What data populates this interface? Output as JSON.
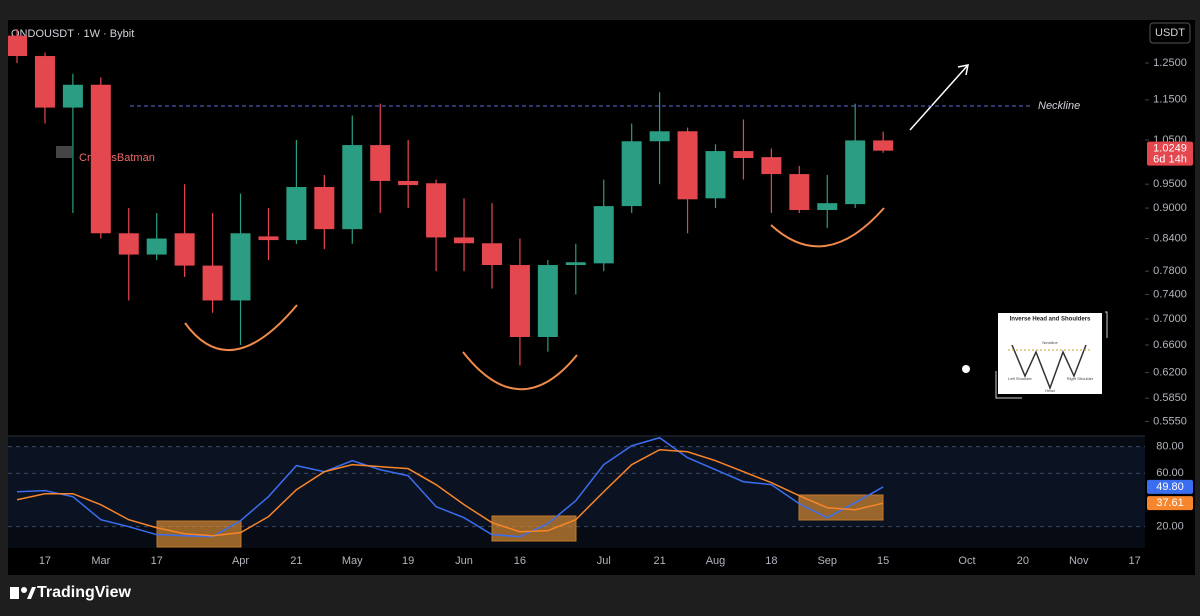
{
  "header": {
    "symbol": "ONDOUSDT · 1W · Bybit",
    "currency": "USDT",
    "author": "CryptosBatman"
  },
  "footer": {
    "logo": "TradingView"
  },
  "chart_data": [
    {
      "type": "candlestick",
      "log_scale": true,
      "up_color": "#2a9d83",
      "down_color": "#e5474f",
      "ylim": [
        0.537,
        1.378
      ],
      "yticks": [
        {
          "value": 1.25,
          "label": "1.2500"
        },
        {
          "value": 1.15,
          "label": "1.1500"
        },
        {
          "value": 1.05,
          "label": "1.0500"
        },
        {
          "value": 0.95,
          "label": "0.9500"
        },
        {
          "value": 0.9,
          "label": "0.9000"
        },
        {
          "value": 0.84,
          "label": "0.8400"
        },
        {
          "value": 0.78,
          "label": "0.7800"
        },
        {
          "value": 0.74,
          "label": "0.7400"
        },
        {
          "value": 0.7,
          "label": "0.7000"
        },
        {
          "value": 0.66,
          "label": "0.6600"
        },
        {
          "value": 0.62,
          "label": "0.6200"
        },
        {
          "value": 0.585,
          "label": "0.5850"
        },
        {
          "value": 0.555,
          "label": "0.5550"
        }
      ],
      "open": [
        1.33,
        1.27,
        1.13,
        1.19,
        0.85,
        0.81,
        0.85,
        0.79,
        0.73,
        0.844,
        0.837,
        0.944,
        0.858,
        1.038,
        0.957,
        0.952,
        0.842,
        0.831,
        0.791,
        0.672,
        0.791,
        0.794,
        0.904,
        1.047,
        1.071,
        0.92,
        1.024,
        1.01,
        0.972,
        0.896,
        0.908,
        1.049,
        null,
        null,
        null,
        null,
        null,
        null,
        null,
        null,
        null
      ],
      "high": [
        1.35,
        1.28,
        1.22,
        1.21,
        0.9,
        0.89,
        0.95,
        0.89,
        0.93,
        0.9,
        1.05,
        0.97,
        1.11,
        1.14,
        1.05,
        0.96,
        0.92,
        0.91,
        0.84,
        0.8,
        0.83,
        0.96,
        1.09,
        1.17,
        1.08,
        1.04,
        1.1,
        1.03,
        0.99,
        0.97,
        1.14,
        1.07,
        null,
        null,
        null,
        null,
        null,
        null,
        null,
        null,
        null
      ],
      "low": [
        1.25,
        1.09,
        0.89,
        0.84,
        0.73,
        0.8,
        0.77,
        0.71,
        0.66,
        0.8,
        0.83,
        0.82,
        0.83,
        0.89,
        0.9,
        0.78,
        0.78,
        0.75,
        0.63,
        0.65,
        0.74,
        0.78,
        0.89,
        0.95,
        0.85,
        0.9,
        0.96,
        0.89,
        0.89,
        0.86,
        0.9,
        1.02,
        null,
        null,
        null,
        null,
        null,
        null,
        null,
        null,
        null
      ],
      "close": [
        1.27,
        1.13,
        1.19,
        0.85,
        0.81,
        0.84,
        0.79,
        0.73,
        0.85,
        0.837,
        0.944,
        0.858,
        1.038,
        0.957,
        0.948,
        0.842,
        0.831,
        0.791,
        0.672,
        0.791,
        0.796,
        0.904,
        1.047,
        1.071,
        0.918,
        1.024,
        1.008,
        0.972,
        0.896,
        0.91,
        1.049,
        1.0249,
        null,
        null,
        null,
        null,
        null,
        null,
        null,
        null,
        null
      ],
      "countdown": "6d 14h",
      "neckline": {
        "label": "Neckline",
        "value": 1.134
      },
      "inset": {
        "title": "Inverse Head and Shoulders",
        "labels": [
          "Neckline",
          "Left Shoulder",
          "Head",
          "Right Shoulder"
        ]
      }
    },
    {
      "type": "line",
      "categories": [
        null,
        "17",
        null,
        "Mar",
        null,
        "17",
        null,
        null,
        "Apr",
        null,
        "21",
        null,
        "May",
        null,
        "19",
        null,
        "Jun",
        null,
        "16",
        null,
        null,
        "Jul",
        null,
        "21",
        null,
        "Aug",
        null,
        "18",
        null,
        "Sep",
        null,
        "15",
        null,
        null,
        "Oct",
        null,
        "20",
        null,
        "Nov",
        null,
        "17"
      ],
      "ylim": [
        4,
        88
      ],
      "yticks": [
        {
          "value": 80,
          "label": "80.00"
        },
        {
          "value": 60,
          "label": "60.00"
        },
        {
          "value": 20,
          "label": "20.00"
        }
      ],
      "series": [
        {
          "color": "#3b6df0",
          "values": [
            46.2,
            47,
            42.5,
            25.2,
            20,
            14,
            13.2,
            12.5,
            24.5,
            42.5,
            65.8,
            61.2,
            69.5,
            62.7,
            58.2,
            35,
            26.7,
            14,
            12.5,
            22.2,
            39.5,
            66.5,
            80.7,
            86.7,
            71.7,
            62.7,
            53.7,
            51.5,
            37.2,
            26.7,
            38,
            49.8,
            null,
            null,
            null,
            null,
            null,
            null,
            null,
            null,
            null
          ],
          "value_labels": [
            null,
            null,
            null,
            null,
            null,
            null,
            null,
            null,
            null,
            null,
            null,
            null,
            null,
            null,
            null,
            null,
            null,
            null,
            null,
            null,
            null,
            null,
            null,
            null,
            null,
            null,
            null,
            null,
            null,
            null,
            null,
            "49.80",
            null,
            null,
            null,
            null,
            null,
            null,
            null,
            null,
            null
          ]
        },
        {
          "color": "#f7852b",
          "values": [
            40.2,
            44.7,
            44.7,
            36.5,
            25.2,
            19.2,
            14.7,
            13.2,
            15.5,
            27.5,
            47.7,
            61.2,
            66.5,
            65,
            63.5,
            51.5,
            36.5,
            23,
            16.2,
            17,
            25.2,
            46.2,
            66.5,
            77.7,
            76.2,
            69.5,
            61.2,
            53,
            43.2,
            34.2,
            32.7,
            37.61,
            null,
            null,
            null,
            null,
            null,
            null,
            null,
            null,
            null
          ],
          "value_labels": [
            null,
            null,
            null,
            null,
            null,
            null,
            null,
            null,
            null,
            null,
            null,
            null,
            null,
            null,
            null,
            null,
            null,
            null,
            null,
            null,
            null,
            null,
            null,
            null,
            null,
            null,
            null,
            null,
            null,
            null,
            null,
            "37.61",
            null,
            null,
            null,
            null,
            null,
            null,
            null,
            null,
            null
          ]
        }
      ]
    }
  ]
}
